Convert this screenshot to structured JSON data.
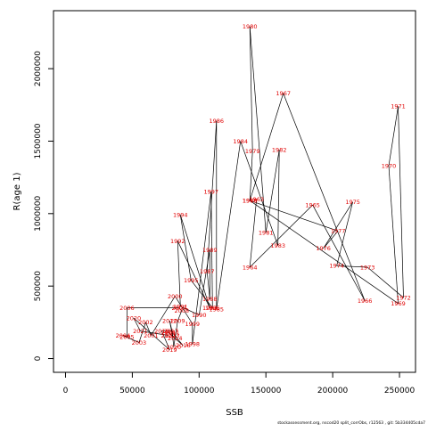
{
  "footer": "stockassessment.org, nscod20 split_corrObs, r12563 , git: 5b334405cda7",
  "colors": {
    "line": "#000000",
    "label": "#e00000",
    "frame": "#000000"
  },
  "chart_data": {
    "type": "line",
    "xlabel": "SSB",
    "ylabel": "R(age 1)",
    "xlim": [
      -9000,
      262000
    ],
    "ylim": [
      -95000,
      2400000
    ],
    "x_ticks": [
      0,
      50000,
      100000,
      150000,
      200000,
      250000
    ],
    "x_tick_labels": [
      "0",
      "50000",
      "100000",
      "150000",
      "200000",
      "250000"
    ],
    "y_ticks": [
      0,
      500000,
      1000000,
      1500000,
      2000000
    ],
    "y_tick_labels": [
      "0",
      "500000",
      "1000000",
      "1500000",
      "2000000"
    ],
    "grid": false,
    "points": [
      {
        "year": "1963",
        "ssb": 143000,
        "rec": 1100000
      },
      {
        "year": "1964",
        "ssb": 138000,
        "rec": 630000
      },
      {
        "year": "1965",
        "ssb": 185000,
        "rec": 1060000
      },
      {
        "year": "1966",
        "ssb": 224000,
        "rec": 400000
      },
      {
        "year": "1967",
        "ssb": 163000,
        "rec": 1830000
      },
      {
        "year": "1968",
        "ssb": 138000,
        "rec": 1090000
      },
      {
        "year": "1969",
        "ssb": 249000,
        "rec": 380000
      },
      {
        "year": "1970",
        "ssb": 242000,
        "rec": 1330000
      },
      {
        "year": "1971",
        "ssb": 249000,
        "rec": 1740000
      },
      {
        "year": "1972",
        "ssb": 253000,
        "rec": 420000
      },
      {
        "year": "1973",
        "ssb": 226000,
        "rec": 630000
      },
      {
        "year": "1974",
        "ssb": 203000,
        "rec": 640000
      },
      {
        "year": "1975",
        "ssb": 215000,
        "rec": 1080000
      },
      {
        "year": "1976",
        "ssb": 193000,
        "rec": 760000
      },
      {
        "year": "1977",
        "ssb": 204000,
        "rec": 880000
      },
      {
        "year": "1978",
        "ssb": 138000,
        "rec": 1090000
      },
      {
        "year": "1979",
        "ssb": 140000,
        "rec": 1430000
      },
      {
        "year": "1980",
        "ssb": 138000,
        "rec": 2290000
      },
      {
        "year": "1981",
        "ssb": 150000,
        "rec": 870000
      },
      {
        "year": "1982",
        "ssb": 160000,
        "rec": 1440000
      },
      {
        "year": "1983",
        "ssb": 159000,
        "rec": 780000
      },
      {
        "year": "1984",
        "ssb": 131000,
        "rec": 1500000
      },
      {
        "year": "1985",
        "ssb": 113000,
        "rec": 340000
      },
      {
        "year": "1986",
        "ssb": 113000,
        "rec": 1640000
      },
      {
        "year": "1987",
        "ssb": 106000,
        "rec": 600000
      },
      {
        "year": "1988",
        "ssb": 108000,
        "rec": 410000
      },
      {
        "year": "1989",
        "ssb": 108000,
        "rec": 750000
      },
      {
        "year": "1990",
        "ssb": 100000,
        "rec": 300000
      },
      {
        "year": "1991",
        "ssb": 86000,
        "rec": 360000
      },
      {
        "year": "1992",
        "ssb": 84000,
        "rec": 810000
      },
      {
        "year": "1993",
        "ssb": 108000,
        "rec": 350000
      },
      {
        "year": "1994",
        "ssb": 86000,
        "rec": 990000
      },
      {
        "year": "1995",
        "ssb": 94000,
        "rec": 540000
      },
      {
        "year": "1996",
        "ssb": 110000,
        "rec": 350000
      },
      {
        "year": "1997",
        "ssb": 109000,
        "rec": 1150000
      },
      {
        "year": "1998",
        "ssb": 95000,
        "rec": 100000
      },
      {
        "year": "1999",
        "ssb": 95000,
        "rec": 240000
      },
      {
        "year": "2000",
        "ssb": 82000,
        "rec": 430000
      },
      {
        "year": "2001",
        "ssb": 64000,
        "rec": 160000
      },
      {
        "year": "2002",
        "ssb": 60000,
        "rec": 250000
      },
      {
        "year": "2003",
        "ssb": 55000,
        "rec": 110000
      },
      {
        "year": "2004",
        "ssb": 43000,
        "rec": 160000
      },
      {
        "year": "2005",
        "ssb": 46000,
        "rec": 150000
      },
      {
        "year": "2006",
        "ssb": 46000,
        "rec": 350000
      },
      {
        "year": "2007",
        "ssb": 85000,
        "rec": 350000
      },
      {
        "year": "2008",
        "ssb": 87000,
        "rec": 330000
      },
      {
        "year": "2009",
        "ssb": 84000,
        "rec": 260000
      },
      {
        "year": "2010",
        "ssb": 81000,
        "rec": 80000
      },
      {
        "year": "2011",
        "ssb": 80000,
        "rec": 180000
      },
      {
        "year": "2012",
        "ssb": 78000,
        "rec": 260000
      },
      {
        "year": "2013",
        "ssb": 80000,
        "rec": 160000
      },
      {
        "year": "2014",
        "ssb": 82000,
        "rec": 140000
      },
      {
        "year": "2015",
        "ssb": 77000,
        "rec": 180000
      },
      {
        "year": "2016",
        "ssb": 88000,
        "rec": 90000
      },
      {
        "year": "2017",
        "ssb": 79000,
        "rec": 190000
      },
      {
        "year": "2018",
        "ssb": 72000,
        "rec": 190000
      },
      {
        "year": "2019",
        "ssb": 78000,
        "rec": 60000
      },
      {
        "year": "2020",
        "ssb": 51000,
        "rec": 280000
      },
      {
        "year": "2021",
        "ssb": 56000,
        "rec": 190000
      },
      {
        "year": "2022",
        "ssb": 77000,
        "rec": 160000
      }
    ]
  }
}
